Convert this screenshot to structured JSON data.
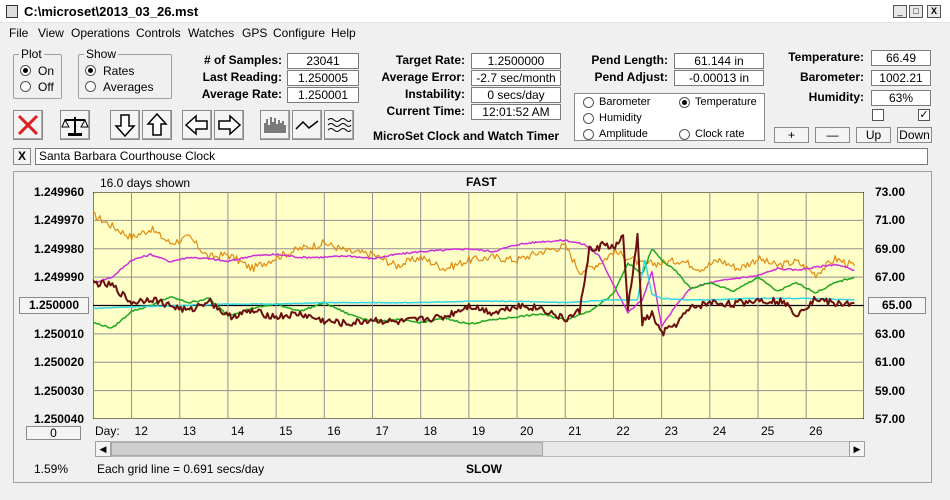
{
  "window": {
    "title": "C:\\microset\\2013_03_26.mst",
    "min": "_",
    "max": "□",
    "close": "X"
  },
  "menu": [
    "File",
    "View",
    "Operations",
    "Controls",
    "Watches",
    "GPS",
    "Configure",
    "Help"
  ],
  "plot": {
    "title": "Plot",
    "on": "On",
    "off": "Off",
    "selected": "On"
  },
  "show": {
    "title": "Show",
    "rates": "Rates",
    "averages": "Averages",
    "selected": "Rates"
  },
  "stats": {
    "samples_label": "# of Samples:",
    "samples": "23041",
    "last_label": "Last Reading:",
    "last": "1.250005",
    "avg_label": "Average Rate:",
    "avg": "1.250001"
  },
  "rate": {
    "target_label": "Target Rate:",
    "target": "1.2500000",
    "error_label": "Average Error:",
    "error": "-2.7 sec/month",
    "instab_label": "Instability:",
    "instab": "0 secs/day",
    "time_label": "Current Time:",
    "time": "12:01:52 AM",
    "caption": "MicroSet Clock and Watch Timer"
  },
  "pend": {
    "length_label": "Pend Length:",
    "length": "61.144 in",
    "adjust_label": "Pend Adjust:",
    "adjust": "-0.00013 in"
  },
  "env": {
    "temp_label": "Temperature:",
    "temp": "66.49",
    "baro_label": "Barometer:",
    "baro": "1002.21",
    "hum_label": "Humidity:",
    "hum": "63%"
  },
  "aux": {
    "barometer": "Barometer",
    "temperature": "Temperature",
    "humidity": "Humidity",
    "amplitude": "Amplitude",
    "clock_rate": "Clock rate",
    "selected": "Temperature"
  },
  "aux_buttons": {
    "plus": "+",
    "minus": "—",
    "up": "Up",
    "down": "Down"
  },
  "colors": {
    "barometer": "#e08b10",
    "temperature": "#1fa81f",
    "humidity": "#d030d8",
    "amplitude": "#33d6e6",
    "clock_rate": "#6b0f0f",
    "plot_bg": "#ffffc8"
  },
  "clock_name": "Santa Barbara Courthouse Clock",
  "clear_label": "X",
  "chart_info": {
    "days_shown": "16.0 days shown",
    "top": "FAST",
    "bottom": "SLOW",
    "grid_note": "Each grid line = 0.691 secs/day",
    "percent": "1.59%",
    "left_center_button": "1.250000",
    "right_center_button": "65.00",
    "zero_button": "0",
    "day_label": "Day:"
  },
  "chart_data": {
    "type": "line",
    "x_range": [
      11.2,
      27.2
    ],
    "y_left": {
      "ticks": [
        "1.249960",
        "1.249970",
        "1.249980",
        "1.249990",
        "1.250000",
        "1.250010",
        "1.250020",
        "1.250030",
        "1.250040"
      ],
      "range_top": "1.249960",
      "range_bottom": "1.250040"
    },
    "y_right": {
      "ticks": [
        "73.00",
        "71.00",
        "69.00",
        "67.00",
        "65.00",
        "63.00",
        "61.00",
        "59.00",
        "57.00"
      ],
      "range": [
        57,
        73
      ]
    },
    "x_ticks": [
      12,
      13,
      14,
      15,
      16,
      17,
      18,
      19,
      20,
      21,
      22,
      23,
      24,
      25,
      26
    ],
    "grid": "on",
    "series": [
      {
        "name": "Barometer",
        "axis": "right",
        "x": [
          11.2,
          11.6,
          12.0,
          12.4,
          12.8,
          13.2,
          13.6,
          14.0,
          14.5,
          15.0,
          15.5,
          16.0,
          16.5,
          17.0,
          17.5,
          18.0,
          18.5,
          19.0,
          19.5,
          20.0,
          20.5,
          21.0,
          21.3,
          21.6,
          21.8,
          22.0,
          22.3,
          22.6,
          23.0,
          23.4,
          23.8,
          24.2,
          24.6,
          25.0,
          25.4,
          25.8,
          26.2,
          26.6,
          27.0
        ],
        "y": [
          71.4,
          70.6,
          69.8,
          70.4,
          69.4,
          69.8,
          68.4,
          68.6,
          67.6,
          68.4,
          69.0,
          69.4,
          68.8,
          68.6,
          67.8,
          68.4,
          67.6,
          68.2,
          68.4,
          68.2,
          68.8,
          69.2,
          67.4,
          67.8,
          68.2,
          68.8,
          68.4,
          67.9,
          68.0,
          68.2,
          67.6,
          68.2,
          67.6,
          68.3,
          67.8,
          68.1,
          67.2,
          68.3,
          67.8
        ]
      },
      {
        "name": "Temperature",
        "axis": "right",
        "x": [
          11.2,
          11.6,
          12.0,
          12.4,
          12.8,
          13.2,
          13.6,
          14.0,
          14.5,
          15.0,
          15.5,
          16.0,
          16.5,
          17.0,
          17.5,
          18.0,
          18.5,
          19.0,
          19.5,
          20.0,
          20.5,
          21.0,
          21.5,
          22.0,
          22.3,
          22.6,
          22.8,
          23.0,
          23.3,
          23.6,
          24.0,
          24.5,
          25.0,
          25.4,
          25.8,
          26.2,
          26.6,
          27.0
        ],
        "y": [
          63.8,
          63.4,
          64.6,
          65.0,
          65.6,
          65.2,
          65.5,
          64.3,
          64.8,
          65.1,
          64.6,
          65.2,
          64.4,
          63.9,
          64.0,
          63.8,
          64.1,
          63.7,
          64.0,
          64.2,
          64.4,
          64.0,
          64.6,
          65.8,
          68.0,
          67.2,
          69.0,
          68.2,
          67.4,
          66.2,
          66.6,
          66.0,
          67.0,
          66.0,
          66.6,
          65.9,
          66.6,
          67.0
        ]
      },
      {
        "name": "Humidity",
        "axis": "right",
        "x": [
          11.2,
          11.6,
          12.0,
          12.4,
          12.8,
          13.2,
          13.6,
          14.0,
          14.5,
          15.0,
          15.5,
          16.0,
          16.5,
          17.0,
          17.5,
          18.0,
          18.5,
          19.0,
          19.5,
          20.0,
          20.5,
          21.0,
          21.4,
          21.7,
          22.0,
          22.3,
          22.6,
          22.8,
          23.0,
          23.3,
          23.6,
          24.0,
          24.5,
          25.0,
          25.4,
          25.8,
          26.2,
          26.6,
          27.0
        ],
        "y": [
          66.6,
          67.0,
          68.2,
          68.6,
          68.1,
          68.4,
          68.3,
          68.1,
          68.5,
          68.6,
          68.4,
          68.4,
          68.5,
          68.3,
          68.6,
          68.8,
          68.9,
          69.0,
          68.8,
          69.3,
          69.5,
          69.6,
          69.3,
          68.5,
          66.5,
          64.5,
          65.4,
          67.4,
          63.5,
          65.0,
          66.2,
          66.6,
          66.9,
          67.1,
          67.6,
          67.5,
          67.7,
          67.9,
          67.5
        ]
      },
      {
        "name": "Amplitude",
        "axis": "right",
        "x": [
          11.2,
          12.0,
          13.0,
          14.0,
          15.0,
          16.0,
          17.0,
          18.0,
          19.0,
          20.0,
          21.0,
          22.0,
          22.5,
          22.65,
          22.8,
          23.0,
          23.5,
          24.0,
          25.0,
          26.0,
          27.0
        ],
        "y": [
          64.8,
          64.9,
          65.0,
          65.1,
          65.1,
          65.2,
          65.2,
          65.2,
          65.3,
          65.3,
          65.2,
          65.4,
          65.4,
          68.2,
          65.8,
          65.5,
          65.4,
          65.4,
          65.5,
          65.5,
          65.4
        ]
      },
      {
        "name": "Clock rate",
        "axis": "right",
        "x": [
          11.2,
          11.6,
          12.0,
          12.4,
          12.8,
          13.2,
          13.6,
          14.0,
          14.5,
          15.0,
          15.5,
          16.0,
          16.5,
          17.0,
          17.5,
          18.0,
          18.5,
          19.0,
          19.5,
          20.0,
          20.5,
          21.0,
          21.3,
          21.5,
          21.6,
          21.8,
          22.0,
          22.2,
          22.3,
          22.5,
          22.6,
          22.8,
          23.0,
          23.3,
          23.6,
          24.0,
          24.5,
          25.0,
          25.5,
          25.8,
          26.2,
          26.6,
          27.0
        ],
        "y": [
          66.6,
          66.4,
          65.2,
          65.5,
          65.0,
          64.6,
          65.4,
          64.2,
          64.6,
          64.2,
          64.4,
          63.9,
          63.7,
          64.0,
          63.8,
          64.0,
          64.2,
          65.0,
          64.5,
          65.0,
          64.8,
          64.0,
          64.6,
          69.0,
          68.8,
          69.4,
          69.0,
          69.8,
          64.8,
          69.8,
          63.8,
          64.4,
          63.0,
          63.7,
          64.8,
          65.2,
          65.1,
          65.4,
          65.3,
          64.4,
          65.5,
          65.1,
          65.2
        ]
      }
    ]
  }
}
